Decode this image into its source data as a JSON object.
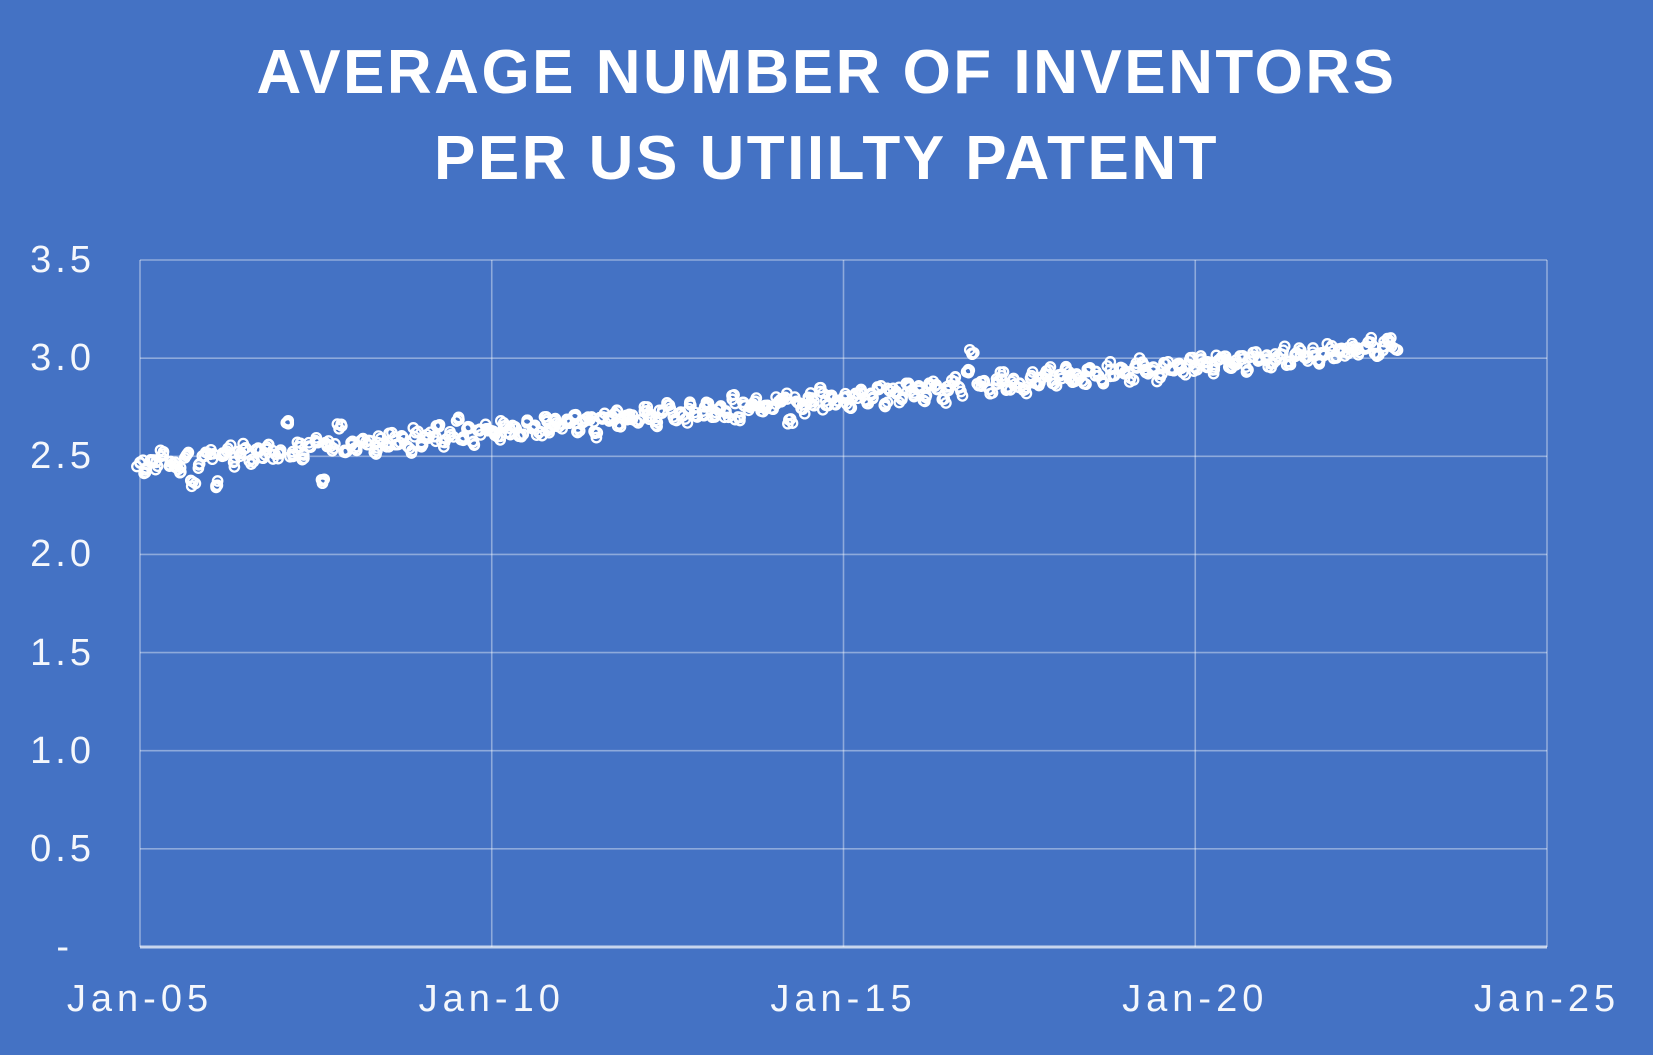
{
  "window": {
    "background_color": "#4472C4"
  },
  "chart_data": {
    "type": "scatter",
    "title": "AVERAGE NUMBER OF INVENTORS PER US UTIILTY PATENT",
    "title_lines": [
      "AVERAGE NUMBER OF INVENTORS",
      "PER US UTIILTY PATENT"
    ],
    "xlabel": "",
    "ylabel": "",
    "xlim": [
      2005,
      2025
    ],
    "ylim": [
      0,
      3.5
    ],
    "grid": true,
    "legend": false,
    "x_ticks": {
      "values": [
        2005,
        2010,
        2015,
        2020,
        2025
      ],
      "labels": [
        "Jan-05",
        "Jan-10",
        "Jan-15",
        "Jan-20",
        "Jan-25"
      ]
    },
    "y_ticks": {
      "values": [
        3.5,
        3.0,
        2.5,
        2.0,
        1.5,
        1.0,
        0.5,
        0
      ],
      "labels": [
        "3.5",
        "3.0",
        "2.5",
        "2.0",
        "1.5",
        "1.0",
        "0.5",
        "-"
      ]
    },
    "colors": {
      "background": "#4472C4",
      "gridline": "rgba(255,255,255,0.40)",
      "axis_line": "rgba(255,255,255,0.70)",
      "text": "#FFFFFF"
    },
    "marker": {
      "shape": "open-circle",
      "color": "#FFFFFF",
      "radius_px": 4.7,
      "stroke_px": 2.3
    },
    "series_name": "Average number of inventors per US utility patent",
    "points": [
      [
        2005.0,
        2.47
      ],
      [
        2005.08,
        2.43
      ],
      [
        2005.17,
        2.48
      ],
      [
        2005.25,
        2.45
      ],
      [
        2005.33,
        2.51
      ],
      [
        2005.42,
        2.45
      ],
      [
        2005.5,
        2.47
      ],
      [
        2005.58,
        2.42
      ],
      [
        2005.67,
        2.51
      ],
      [
        2005.75,
        2.37
      ],
      [
        2005.83,
        2.44
      ],
      [
        2005.92,
        2.5
      ],
      [
        2006.0,
        2.51
      ],
      [
        2006.08,
        2.35
      ],
      [
        2006.17,
        2.5
      ],
      [
        2006.25,
        2.54
      ],
      [
        2006.33,
        2.47
      ],
      [
        2006.42,
        2.5
      ],
      [
        2006.5,
        2.54
      ],
      [
        2006.58,
        2.46
      ],
      [
        2006.67,
        2.53
      ],
      [
        2006.75,
        2.49
      ],
      [
        2006.83,
        2.56
      ],
      [
        2006.92,
        2.51
      ],
      [
        2007.0,
        2.52
      ],
      [
        2007.08,
        2.67
      ],
      [
        2007.17,
        2.51
      ],
      [
        2007.25,
        2.55
      ],
      [
        2007.33,
        2.49
      ],
      [
        2007.42,
        2.55
      ],
      [
        2007.5,
        2.57
      ],
      [
        2007.58,
        2.38
      ],
      [
        2007.67,
        2.56
      ],
      [
        2007.75,
        2.54
      ],
      [
        2007.83,
        2.64
      ],
      [
        2007.92,
        2.52
      ],
      [
        2008.0,
        2.57
      ],
      [
        2008.08,
        2.53
      ],
      [
        2008.17,
        2.59
      ],
      [
        2008.25,
        2.56
      ],
      [
        2008.33,
        2.52
      ],
      [
        2008.42,
        2.59
      ],
      [
        2008.5,
        2.56
      ],
      [
        2008.58,
        2.62
      ],
      [
        2008.67,
        2.56
      ],
      [
        2008.75,
        2.59
      ],
      [
        2008.83,
        2.54
      ],
      [
        2008.92,
        2.62
      ],
      [
        2009.0,
        2.57
      ],
      [
        2009.08,
        2.61
      ],
      [
        2009.17,
        2.6
      ],
      [
        2009.25,
        2.65
      ],
      [
        2009.33,
        2.57
      ],
      [
        2009.42,
        2.61
      ],
      [
        2009.5,
        2.68
      ],
      [
        2009.58,
        2.59
      ],
      [
        2009.67,
        2.64
      ],
      [
        2009.75,
        2.56
      ],
      [
        2009.83,
        2.63
      ],
      [
        2009.92,
        2.64
      ],
      [
        2010.0,
        2.63
      ],
      [
        2010.08,
        2.6
      ],
      [
        2010.17,
        2.67
      ],
      [
        2010.25,
        2.62
      ],
      [
        2010.33,
        2.65
      ],
      [
        2010.42,
        2.6
      ],
      [
        2010.5,
        2.67
      ],
      [
        2010.58,
        2.64
      ],
      [
        2010.67,
        2.62
      ],
      [
        2010.75,
        2.7
      ],
      [
        2010.83,
        2.64
      ],
      [
        2010.92,
        2.67
      ],
      [
        2011.0,
        2.64
      ],
      [
        2011.08,
        2.68
      ],
      [
        2011.17,
        2.71
      ],
      [
        2011.25,
        2.63
      ],
      [
        2011.33,
        2.68
      ],
      [
        2011.42,
        2.7
      ],
      [
        2011.5,
        2.62
      ],
      [
        2011.58,
        2.7
      ],
      [
        2011.67,
        2.68
      ],
      [
        2011.75,
        2.72
      ],
      [
        2011.83,
        2.65
      ],
      [
        2011.92,
        2.7
      ],
      [
        2012.0,
        2.71
      ],
      [
        2012.08,
        2.67
      ],
      [
        2012.17,
        2.73
      ],
      [
        2012.25,
        2.7
      ],
      [
        2012.33,
        2.66
      ],
      [
        2012.42,
        2.72
      ],
      [
        2012.5,
        2.76
      ],
      [
        2012.58,
        2.7
      ],
      [
        2012.67,
        2.72
      ],
      [
        2012.75,
        2.69
      ],
      [
        2012.83,
        2.76
      ],
      [
        2012.92,
        2.7
      ],
      [
        2013.0,
        2.73
      ],
      [
        2013.08,
        2.77
      ],
      [
        2013.17,
        2.7
      ],
      [
        2013.25,
        2.75
      ],
      [
        2013.33,
        2.72
      ],
      [
        2013.42,
        2.79
      ],
      [
        2013.5,
        2.7
      ],
      [
        2013.58,
        2.76
      ],
      [
        2013.67,
        2.75
      ],
      [
        2013.75,
        2.78
      ],
      [
        2013.83,
        2.73
      ],
      [
        2013.92,
        2.76
      ],
      [
        2014.0,
        2.74
      ],
      [
        2014.08,
        2.78
      ],
      [
        2014.17,
        2.8
      ],
      [
        2014.25,
        2.69
      ],
      [
        2014.33,
        2.78
      ],
      [
        2014.42,
        2.74
      ],
      [
        2014.5,
        2.8
      ],
      [
        2014.58,
        2.78
      ],
      [
        2014.67,
        2.83
      ],
      [
        2014.75,
        2.76
      ],
      [
        2014.83,
        2.8
      ],
      [
        2014.92,
        2.78
      ],
      [
        2015.0,
        2.8
      ],
      [
        2015.08,
        2.75
      ],
      [
        2015.17,
        2.82
      ],
      [
        2015.25,
        2.84
      ],
      [
        2015.33,
        2.78
      ],
      [
        2015.42,
        2.8
      ],
      [
        2015.5,
        2.84
      ],
      [
        2015.58,
        2.76
      ],
      [
        2015.67,
        2.83
      ],
      [
        2015.75,
        2.83
      ],
      [
        2015.83,
        2.79
      ],
      [
        2015.92,
        2.86
      ],
      [
        2016.0,
        2.81
      ],
      [
        2016.08,
        2.85
      ],
      [
        2016.17,
        2.8
      ],
      [
        2016.25,
        2.86
      ],
      [
        2016.33,
        2.84
      ],
      [
        2016.42,
        2.79
      ],
      [
        2016.5,
        2.86
      ],
      [
        2016.58,
        2.88
      ],
      [
        2016.67,
        2.83
      ],
      [
        2016.75,
        2.93
      ],
      [
        2016.83,
        3.02
      ],
      [
        2016.92,
        2.86
      ],
      [
        2017.0,
        2.88
      ],
      [
        2017.08,
        2.84
      ],
      [
        2017.17,
        2.87
      ],
      [
        2017.25,
        2.91
      ],
      [
        2017.33,
        2.84
      ],
      [
        2017.42,
        2.89
      ],
      [
        2017.5,
        2.87
      ],
      [
        2017.58,
        2.84
      ],
      [
        2017.67,
        2.91
      ],
      [
        2017.75,
        2.87
      ],
      [
        2017.83,
        2.9
      ],
      [
        2017.92,
        2.94
      ],
      [
        2018.0,
        2.87
      ],
      [
        2018.08,
        2.91
      ],
      [
        2018.17,
        2.94
      ],
      [
        2018.25,
        2.89
      ],
      [
        2018.33,
        2.91
      ],
      [
        2018.42,
        2.87
      ],
      [
        2018.5,
        2.94
      ],
      [
        2018.58,
        2.91
      ],
      [
        2018.67,
        2.89
      ],
      [
        2018.75,
        2.96
      ],
      [
        2018.83,
        2.91
      ],
      [
        2018.92,
        2.94
      ],
      [
        2019.0,
        2.93
      ],
      [
        2019.08,
        2.9
      ],
      [
        2019.17,
        2.95
      ],
      [
        2019.25,
        2.98
      ],
      [
        2019.33,
        2.92
      ],
      [
        2019.42,
        2.95
      ],
      [
        2019.5,
        2.9
      ],
      [
        2019.58,
        2.97
      ],
      [
        2019.67,
        2.95
      ],
      [
        2019.75,
        2.97
      ],
      [
        2019.83,
        2.93
      ],
      [
        2019.92,
        2.99
      ],
      [
        2020.0,
        2.95
      ],
      [
        2020.08,
        2.99
      ],
      [
        2020.17,
        2.96
      ],
      [
        2020.25,
        2.94
      ],
      [
        2020.33,
        2.99
      ],
      [
        2020.42,
        3.01
      ],
      [
        2020.5,
        2.95
      ],
      [
        2020.58,
        2.99
      ],
      [
        2020.67,
        3.01
      ],
      [
        2020.75,
        2.94
      ],
      [
        2020.83,
        3.01
      ],
      [
        2020.92,
        2.99
      ],
      [
        2021.0,
        3.01
      ],
      [
        2021.08,
        2.97
      ],
      [
        2021.17,
        3.01
      ],
      [
        2021.25,
        3.04
      ],
      [
        2021.33,
        2.97
      ],
      [
        2021.42,
        3.02
      ],
      [
        2021.5,
        3.04
      ],
      [
        2021.58,
        3.0
      ],
      [
        2021.67,
        3.03
      ],
      [
        2021.75,
        2.98
      ],
      [
        2021.83,
        3.03
      ],
      [
        2021.92,
        3.05
      ],
      [
        2022.0,
        3.01
      ],
      [
        2022.08,
        3.05
      ],
      [
        2022.17,
        3.03
      ],
      [
        2022.25,
        3.06
      ],
      [
        2022.33,
        3.03
      ],
      [
        2022.42,
        3.06
      ],
      [
        2022.5,
        3.08
      ],
      [
        2022.58,
        3.02
      ],
      [
        2022.67,
        3.06
      ],
      [
        2022.75,
        3.08
      ],
      [
        2022.83,
        3.05
      ]
    ],
    "render_density": {
      "seed": 7,
      "companions_per_point": 3,
      "x_jitter_years": 0.045,
      "y_jitter_units": 0.025
    }
  }
}
